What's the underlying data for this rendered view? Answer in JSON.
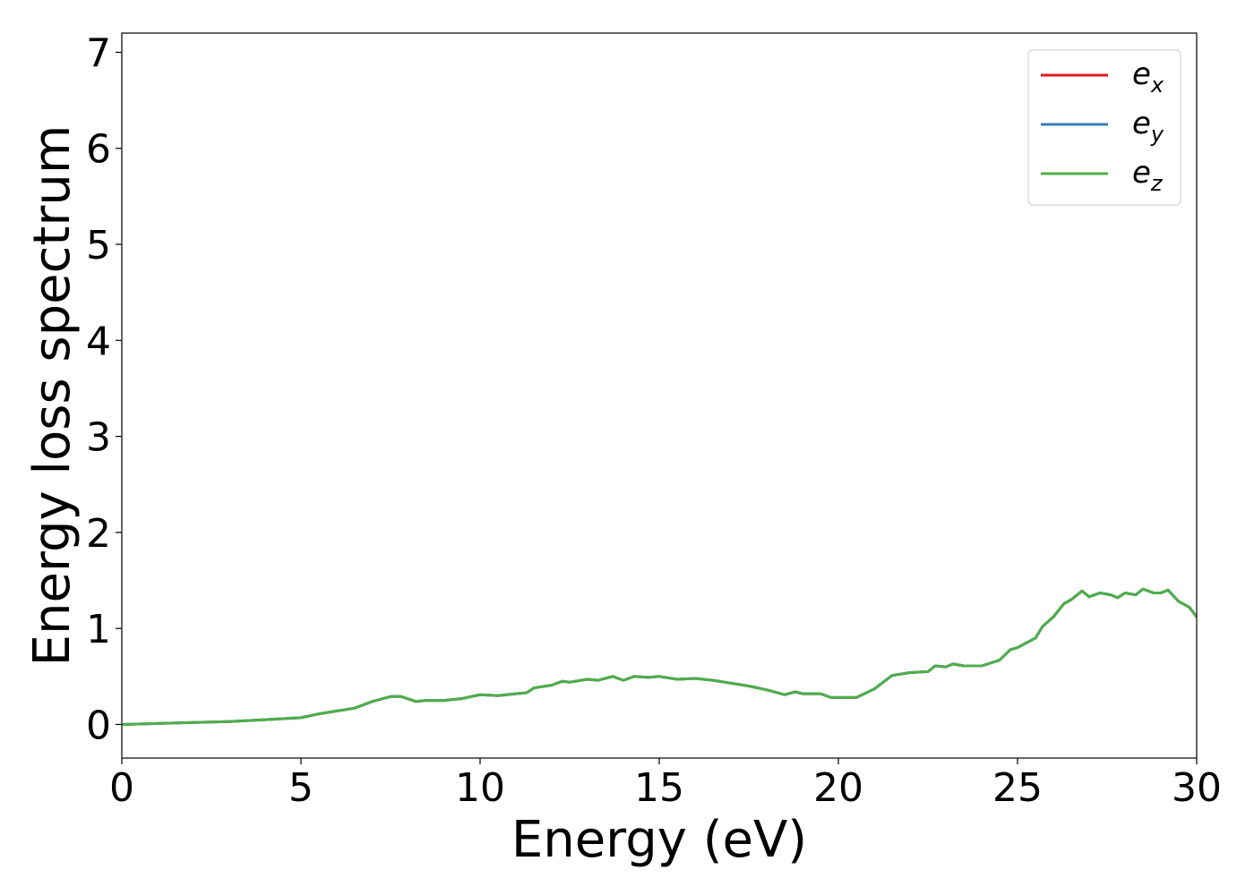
{
  "chart_data": {
    "type": "line",
    "xlabel": "Energy (eV)",
    "ylabel": "Energy loss spectrum",
    "x": [
      0,
      1,
      2,
      3,
      4,
      5,
      5.5,
      6,
      6.5,
      7,
      7.5,
      7.8,
      8.2,
      8.5,
      9,
      9.5,
      10,
      10.5,
      11,
      11.3,
      11.5,
      12,
      12.3,
      12.5,
      13,
      13.3,
      13.7,
      14,
      14.3,
      14.7,
      15,
      15.5,
      16,
      16.5,
      17,
      17.5,
      18,
      18.5,
      18.8,
      19,
      19.5,
      19.8,
      20.5,
      21,
      21.5,
      22,
      22.5,
      22.7,
      23,
      23.2,
      23.5,
      24,
      24.5,
      24.8,
      25,
      25.5,
      25.7,
      26,
      26.3,
      26.5,
      26.8,
      27,
      27.3,
      27.6,
      27.8,
      28,
      28.3,
      28.5,
      28.8,
      29,
      29.2,
      29.5,
      29.8,
      30
    ],
    "series": [
      {
        "name": "e_x",
        "color": "#e41a1c",
        "values": [
          0.0,
          0.01,
          0.02,
          0.03,
          0.05,
          0.07,
          0.11,
          0.14,
          0.17,
          0.24,
          0.29,
          0.29,
          0.24,
          0.25,
          0.25,
          0.27,
          0.31,
          0.3,
          0.32,
          0.33,
          0.38,
          0.41,
          0.45,
          0.44,
          0.47,
          0.46,
          0.5,
          0.46,
          0.5,
          0.49,
          0.5,
          0.47,
          0.48,
          0.46,
          0.43,
          0.4,
          0.36,
          0.31,
          0.34,
          0.32,
          0.32,
          0.28,
          0.28,
          0.37,
          0.51,
          0.54,
          0.55,
          0.61,
          0.6,
          0.63,
          0.61,
          0.61,
          0.67,
          0.78,
          0.8,
          0.9,
          1.02,
          1.12,
          1.26,
          1.3,
          1.39,
          1.33,
          1.37,
          1.35,
          1.32,
          1.37,
          1.35,
          1.41,
          1.37,
          1.37,
          1.4,
          1.28,
          1.22,
          1.12
        ]
      },
      {
        "name": "e_y",
        "color": "#377eb8",
        "values": [
          0.0,
          0.01,
          0.02,
          0.03,
          0.05,
          0.07,
          0.11,
          0.14,
          0.17,
          0.24,
          0.29,
          0.29,
          0.24,
          0.25,
          0.25,
          0.27,
          0.31,
          0.3,
          0.32,
          0.33,
          0.38,
          0.41,
          0.45,
          0.44,
          0.47,
          0.46,
          0.5,
          0.46,
          0.5,
          0.49,
          0.5,
          0.47,
          0.48,
          0.46,
          0.43,
          0.4,
          0.36,
          0.31,
          0.34,
          0.32,
          0.32,
          0.28,
          0.28,
          0.37,
          0.51,
          0.54,
          0.55,
          0.61,
          0.6,
          0.63,
          0.61,
          0.61,
          0.67,
          0.78,
          0.8,
          0.9,
          1.02,
          1.12,
          1.26,
          1.3,
          1.39,
          1.33,
          1.37,
          1.35,
          1.32,
          1.37,
          1.35,
          1.41,
          1.37,
          1.37,
          1.4,
          1.28,
          1.22,
          1.12
        ]
      },
      {
        "name": "e_z",
        "color": "#4daf4a",
        "values": [
          0.0,
          0.01,
          0.02,
          0.03,
          0.05,
          0.07,
          0.11,
          0.14,
          0.17,
          0.24,
          0.29,
          0.29,
          0.24,
          0.25,
          0.25,
          0.27,
          0.31,
          0.3,
          0.32,
          0.33,
          0.38,
          0.41,
          0.45,
          0.44,
          0.47,
          0.46,
          0.5,
          0.46,
          0.5,
          0.49,
          0.5,
          0.47,
          0.48,
          0.46,
          0.43,
          0.4,
          0.36,
          0.31,
          0.34,
          0.32,
          0.32,
          0.28,
          0.28,
          0.37,
          0.51,
          0.54,
          0.55,
          0.61,
          0.6,
          0.63,
          0.61,
          0.61,
          0.67,
          0.78,
          0.8,
          0.9,
          1.02,
          1.12,
          1.26,
          1.3,
          1.39,
          1.33,
          1.37,
          1.35,
          1.32,
          1.37,
          1.35,
          1.41,
          1.37,
          1.37,
          1.4,
          1.28,
          1.22,
          1.12
        ]
      }
    ],
    "xlim": [
      0,
      30
    ],
    "xticks": [
      0,
      5,
      10,
      15,
      20,
      25,
      30
    ],
    "ylim": [
      -0.35,
      7.2
    ],
    "yticks": [
      0,
      1,
      2,
      3,
      4,
      5,
      6,
      7
    ],
    "grid": false,
    "legend": "upper right"
  }
}
